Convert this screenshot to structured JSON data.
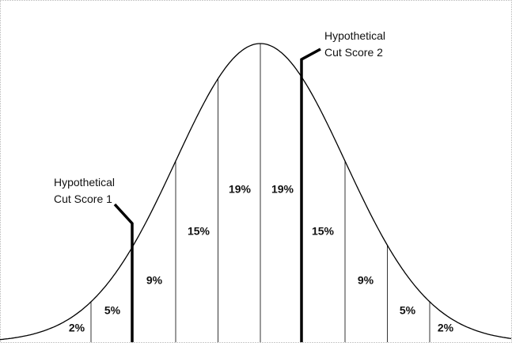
{
  "cut_scores": [
    {
      "line1": "Hypothetical",
      "line2": "Cut Score 1"
    },
    {
      "line1": "Hypothetical",
      "line2": "Cut Score 2"
    }
  ],
  "segments": [
    "2%",
    "5%",
    "9%",
    "15%",
    "19%",
    "19%",
    "15%",
    "9%",
    "5%",
    "2%"
  ]
}
